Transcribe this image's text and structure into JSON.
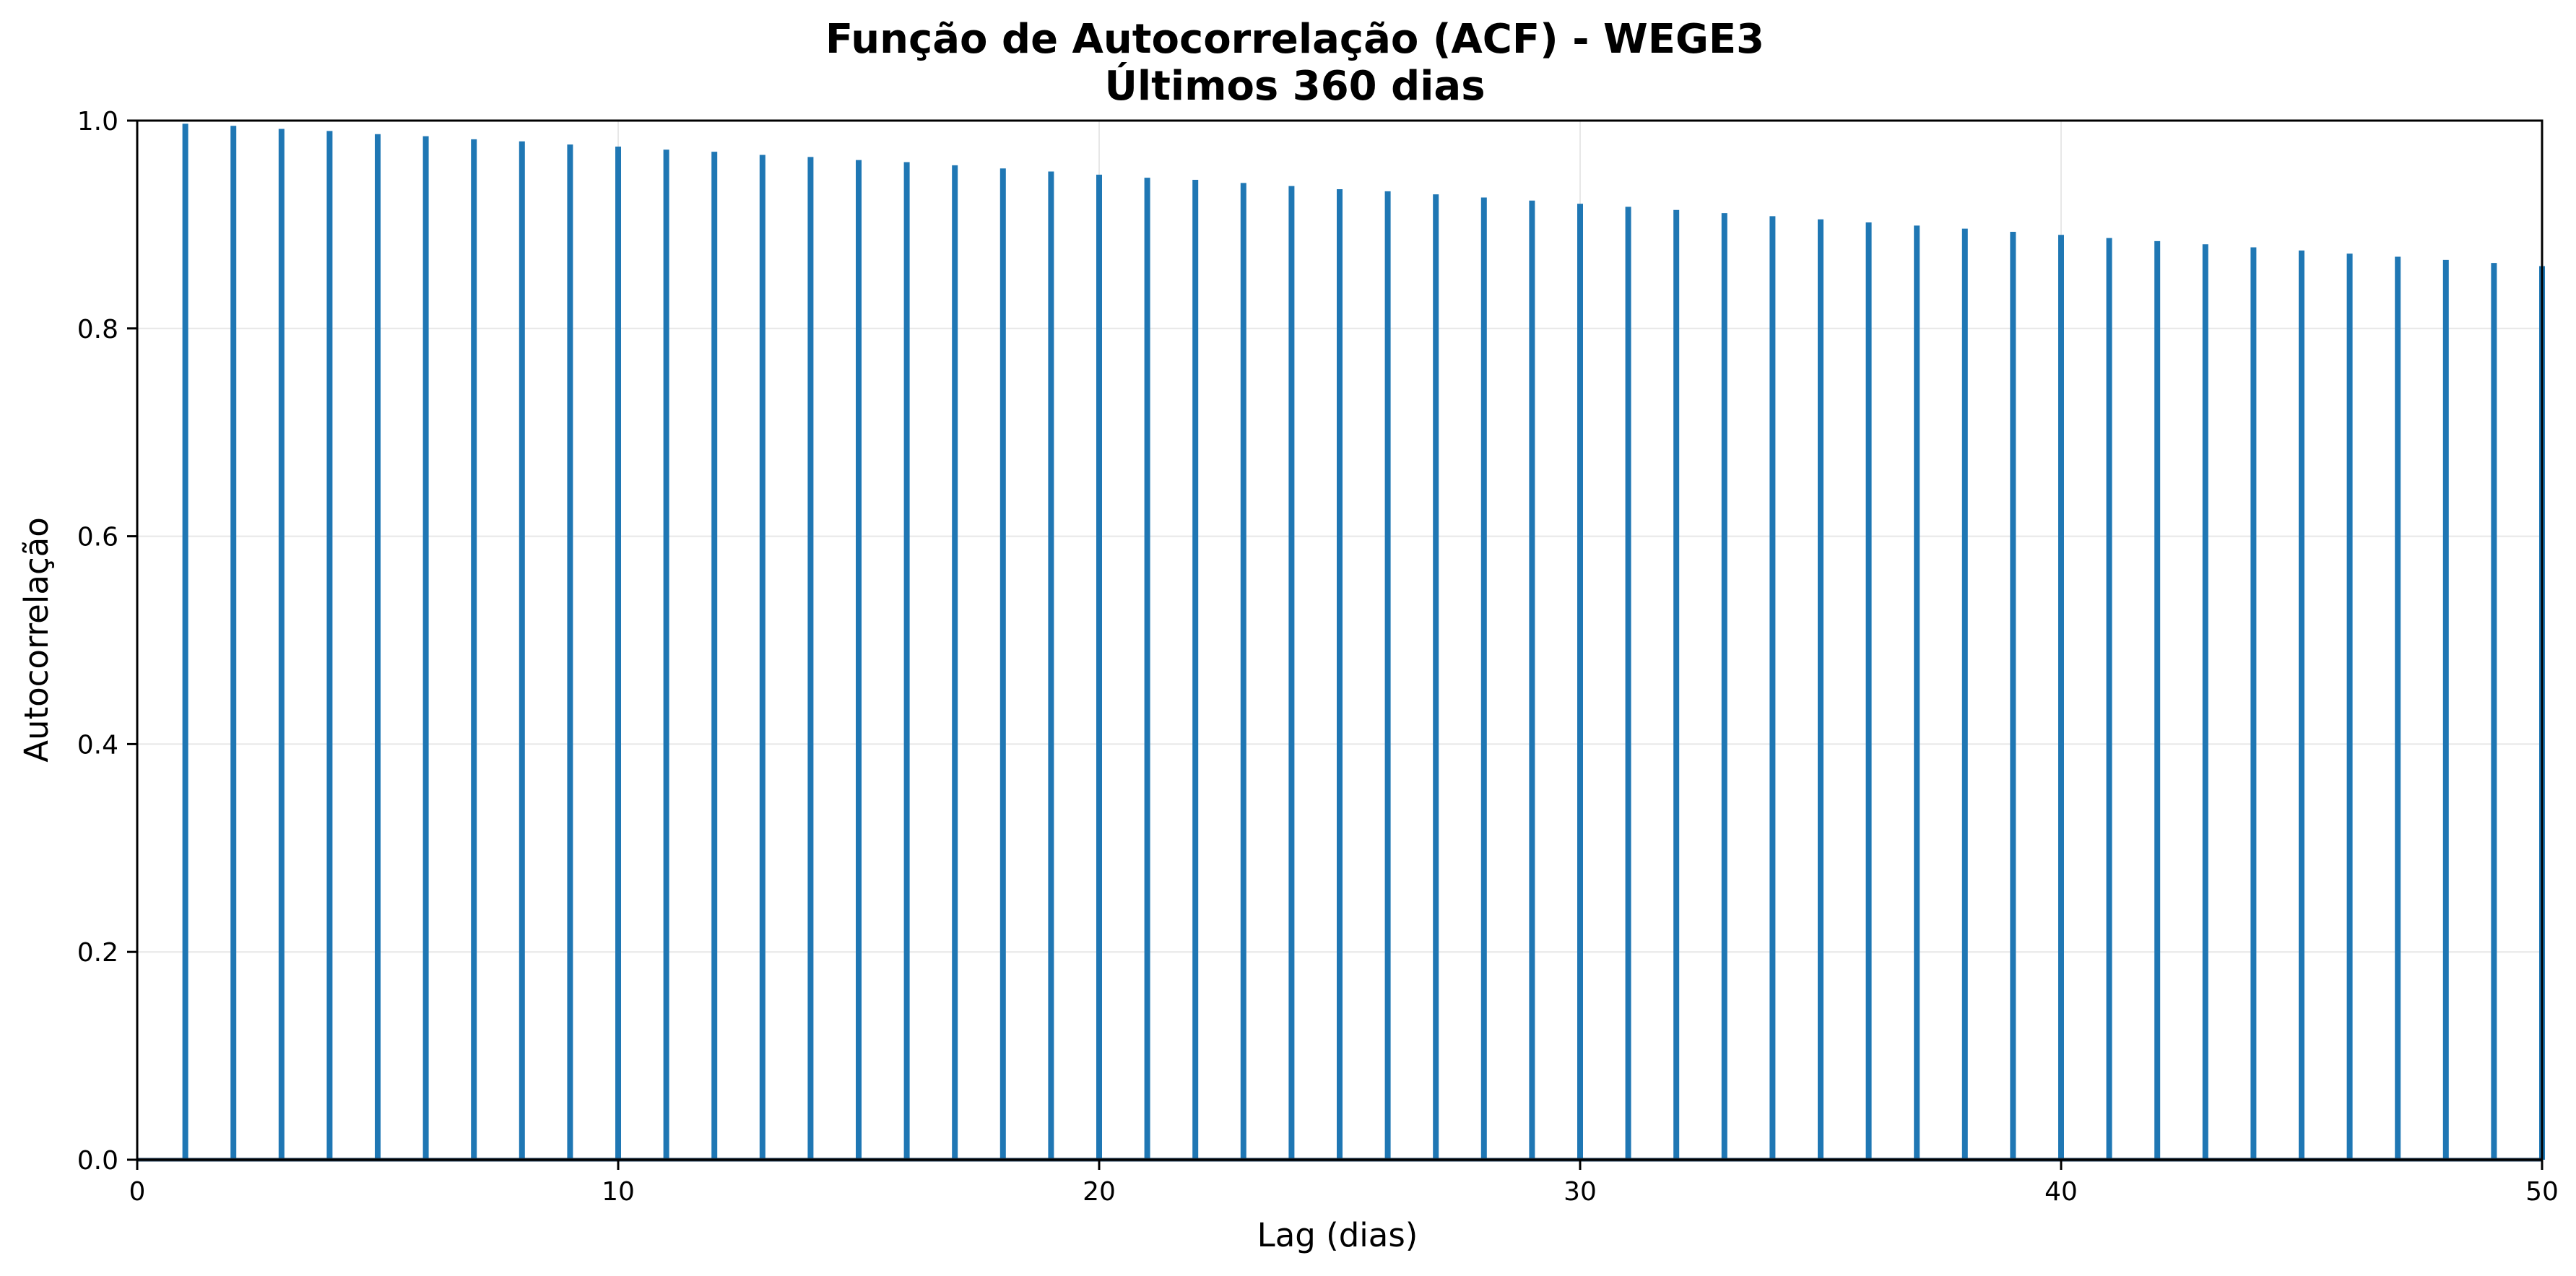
{
  "chart_data": {
    "type": "bar",
    "title": "Função de Autocorrelação (ACF) - WEGE3",
    "subtitle": "Últimos 360 dias",
    "xlabel": "Lag (dias)",
    "ylabel": "Autocorrelação",
    "xlim": [
      0,
      50
    ],
    "ylim": [
      0,
      1.0
    ],
    "xticks": [
      0,
      10,
      20,
      30,
      40,
      50
    ],
    "yticks": [
      0.0,
      0.2,
      0.4,
      0.6,
      0.8,
      1.0
    ],
    "xtick_labels": [
      "0",
      "10",
      "20",
      "30",
      "40",
      "50"
    ],
    "ytick_labels": [
      "0.0",
      "0.2",
      "0.4",
      "0.6",
      "0.8",
      "1.0"
    ],
    "grid": true,
    "color": "#1f77b4",
    "lags": [
      1,
      2,
      3,
      4,
      5,
      6,
      7,
      8,
      9,
      10,
      11,
      12,
      13,
      14,
      15,
      16,
      17,
      18,
      19,
      20,
      21,
      22,
      23,
      24,
      25,
      26,
      27,
      28,
      29,
      30,
      31,
      32,
      33,
      34,
      35,
      36,
      37,
      38,
      39,
      40,
      41,
      42,
      43,
      44,
      45,
      46,
      47,
      48,
      49,
      50
    ],
    "values": [
      0.997,
      0.995,
      0.992,
      0.99,
      0.987,
      0.985,
      0.982,
      0.98,
      0.977,
      0.975,
      0.972,
      0.97,
      0.967,
      0.965,
      0.962,
      0.96,
      0.957,
      0.954,
      0.951,
      0.948,
      0.945,
      0.943,
      0.94,
      0.937,
      0.934,
      0.932,
      0.929,
      0.926,
      0.923,
      0.92,
      0.917,
      0.914,
      0.911,
      0.908,
      0.905,
      0.902,
      0.899,
      0.896,
      0.893,
      0.89,
      0.887,
      0.884,
      0.881,
      0.878,
      0.875,
      0.872,
      0.869,
      0.866,
      0.863,
      0.86
    ]
  }
}
